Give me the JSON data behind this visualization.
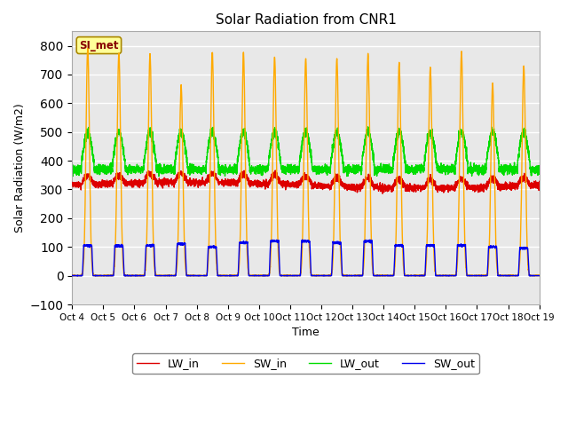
{
  "title": "Solar Radiation from CNR1",
  "xlabel": "Time",
  "ylabel": "Solar Radiation (W/m2)",
  "ylim": [
    -100,
    850
  ],
  "yticks": [
    -100,
    0,
    100,
    200,
    300,
    400,
    500,
    600,
    700,
    800
  ],
  "x_labels": [
    "Oct 4",
    "Oct 5",
    "Oct 6",
    "Oct 7",
    "Oct 8",
    "Oct 9",
    "Oct 10",
    "Oct 11",
    "Oct 12",
    "Oct 13",
    "Oct 14",
    "Oct 15",
    "Oct 16",
    "Oct 17",
    "Oct 18",
    "Oct 19"
  ],
  "colors": {
    "LW_in": "#dd0000",
    "SW_in": "#ffaa00",
    "LW_out": "#00dd00",
    "SW_out": "#0000ee"
  },
  "legend_label": "SI_met",
  "background_color": "#e8e8e8",
  "grid_color": "#ffffff",
  "num_days": 15,
  "points_per_day": 288
}
